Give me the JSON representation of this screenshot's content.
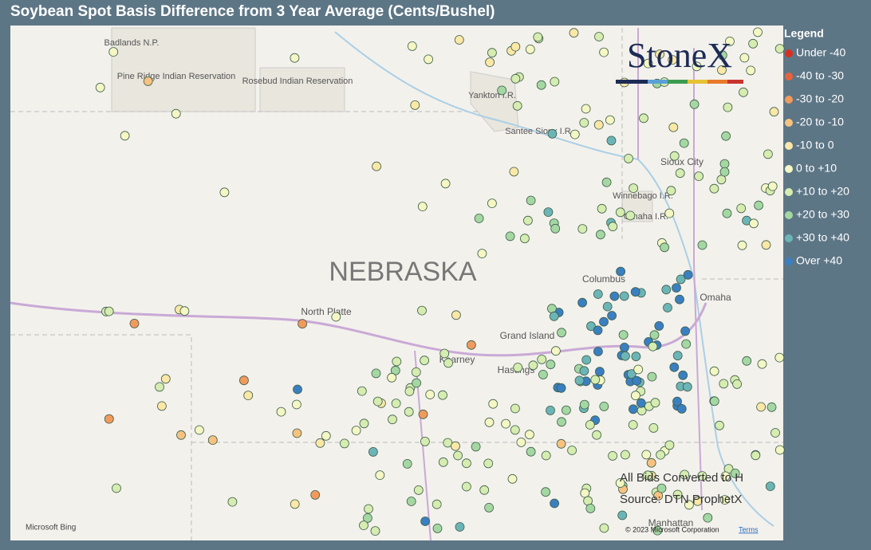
{
  "title": "Soybean Spot Basis Difference from 3 Year Average (Cents/Bushel)",
  "legend": {
    "title": "Legend",
    "items": [
      {
        "label": "Under -40",
        "color": "#d7301f"
      },
      {
        "label": "-40 to -30",
        "color": "#e8623a"
      },
      {
        "label": "-30 to -20",
        "color": "#f29a5c"
      },
      {
        "label": "-20 to -10",
        "color": "#f7c27f"
      },
      {
        "label": "-10 to 0",
        "color": "#fbe7a6"
      },
      {
        "label": "0 to +10",
        "color": "#f4f6c4"
      },
      {
        "label": "+10 to +20",
        "color": "#d6ecb0"
      },
      {
        "label": "+20 to +30",
        "color": "#a5d7a2"
      },
      {
        "label": "+30 to +40",
        "color": "#6cb5b7"
      },
      {
        "label": "Over +40",
        "color": "#3a7fc0"
      }
    ]
  },
  "map": {
    "labels": [
      "Badlands N.P.",
      "Pine Ridge Indian Reservation",
      "Rosebud Indian Reservation",
      "Yankton I.R.",
      "Santee Sioux I.R.",
      "Sioux City",
      "Winnebago I.R.",
      "Omaha I.R.",
      "NEBRASKA",
      "North Platte",
      "Columbus",
      "Grand Island",
      "Kearney",
      "Hastings",
      "Omaha",
      "Manhattan"
    ],
    "logo": "StoneX",
    "notes": [
      "All Bids Converted to H",
      "Source: DTN ProphetX"
    ],
    "provider": "Microsoft Bing",
    "copyright": "© 2023 Microsoft Corporation",
    "terms": "Terms"
  }
}
